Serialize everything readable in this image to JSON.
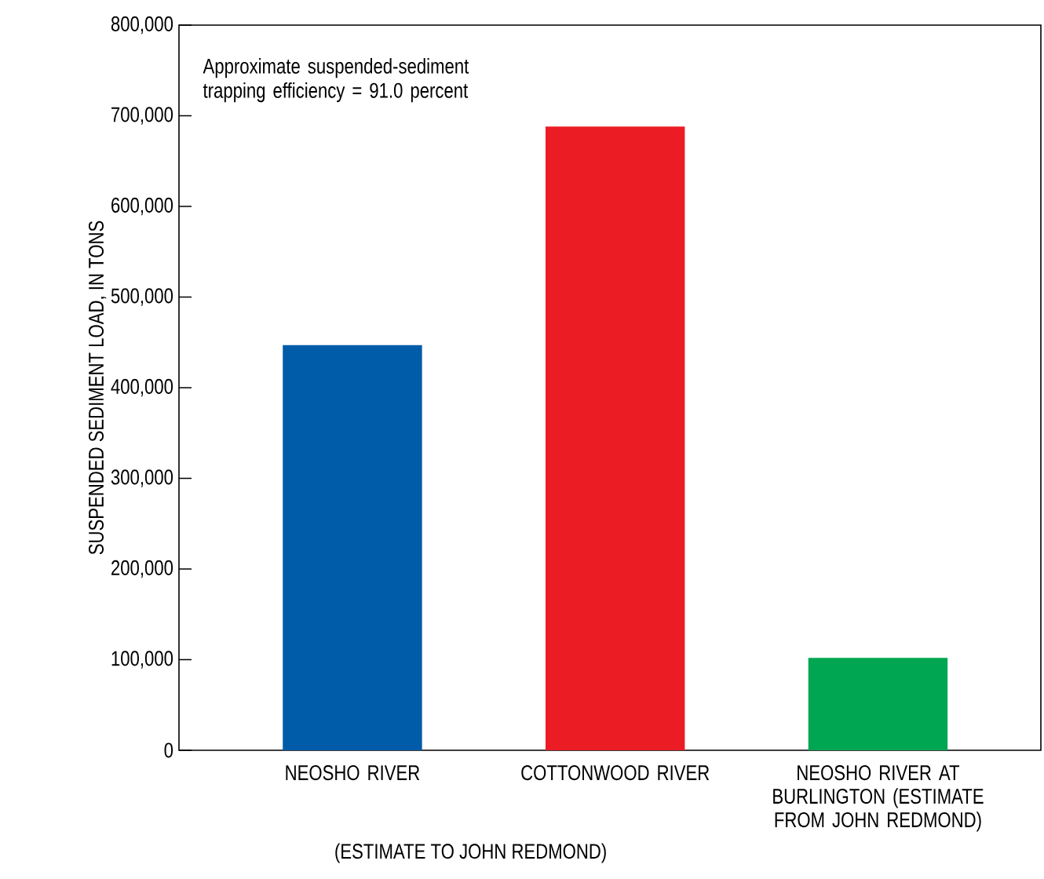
{
  "chart_data": {
    "type": "bar",
    "ylabel": "SUSPENDED SEDIMENT LOAD, IN TONS",
    "categories": [
      "NEOSHO RIVER",
      "COTTONWOOD RIVER",
      "NEOSHO RIVER AT BURLINGTON (ESTIMATE FROM JOHN REDMOND)"
    ],
    "values": [
      447000,
      688000,
      102000
    ],
    "colors": [
      "#005ba9",
      "#ec1c24",
      "#00a651"
    ],
    "ylim": [
      0,
      800000
    ],
    "yticks": [
      0,
      {
        "value": 100000,
        "label": "100,000"
      },
      {
        "value": 200000,
        "label": "200,000"
      },
      {
        "value": 300000,
        "label": "300,000"
      },
      {
        "value": 400000,
        "label": "400,000"
      },
      {
        "value": 500000,
        "label": "500,000"
      },
      {
        "value": 600000,
        "label": "600,000"
      },
      {
        "value": 700000,
        "label": "700,000"
      },
      {
        "value": 800000,
        "label": "800,000"
      }
    ],
    "annotations": [
      "Approximate suspended-sediment trapping efficiency = 91.0 percent",
      "(ESTIMATE TO JOHN REDMOND)"
    ]
  }
}
